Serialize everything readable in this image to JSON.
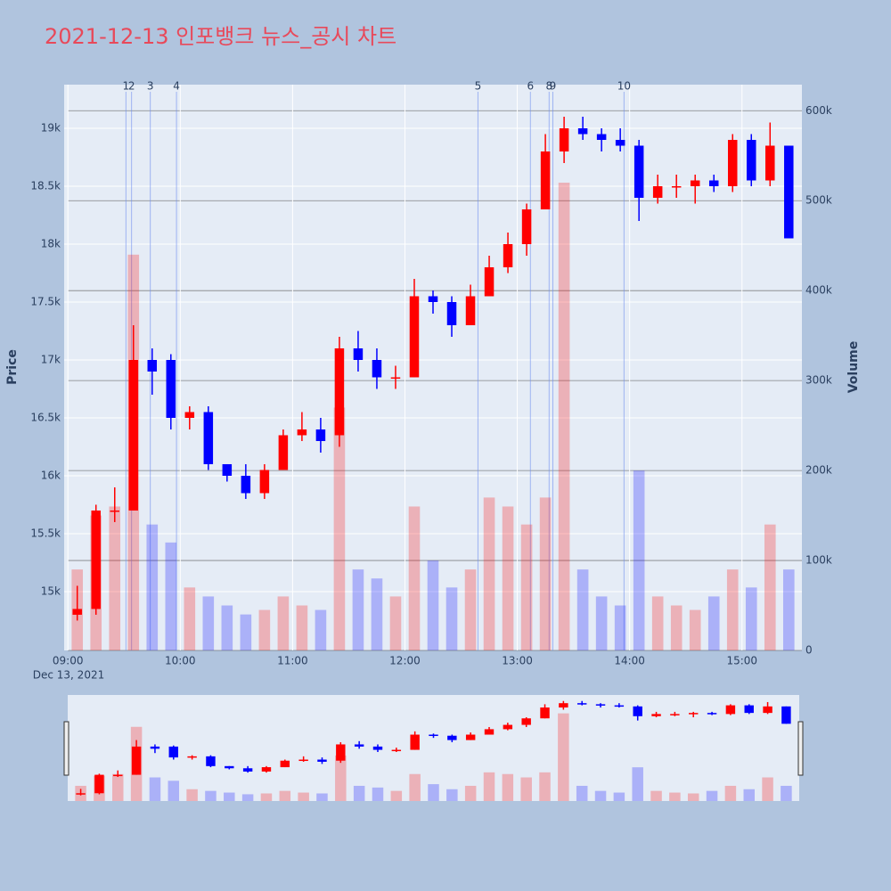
{
  "chart_data": {
    "type": "candlestick",
    "title": "2021-12-13 인포뱅크 뉴스_공시 차트",
    "y_title": "Price",
    "y2_title": "Volume",
    "x": [
      "09:00",
      "09:10",
      "09:20",
      "09:30",
      "09:40",
      "09:50",
      "10:00",
      "10:10",
      "10:20",
      "10:30",
      "10:40",
      "10:50",
      "11:00",
      "11:10",
      "11:20",
      "11:30",
      "11:40",
      "11:50",
      "12:00",
      "12:10",
      "12:20",
      "12:30",
      "12:40",
      "12:50",
      "13:00",
      "13:10",
      "13:20",
      "13:30",
      "13:40",
      "13:50",
      "14:00",
      "14:10",
      "14:20",
      "14:30",
      "14:40",
      "14:50",
      "15:00",
      "15:10",
      "15:20"
    ],
    "open": [
      14800,
      14850,
      15700,
      15700,
      17000,
      17000,
      16500,
      16550,
      16100,
      16000,
      15850,
      16050,
      16350,
      16400,
      16350,
      17100,
      17000,
      16850,
      16850,
      17550,
      17500,
      17300,
      17550,
      17800,
      18000,
      18300,
      18800,
      19000,
      18950,
      18900,
      18850,
      18400,
      18500,
      18500,
      18550,
      18500,
      18900,
      18550,
      18850
    ],
    "high": [
      15050,
      15750,
      15900,
      17300,
      17100,
      17050,
      16600,
      16600,
      16100,
      16100,
      16100,
      16400,
      16550,
      16500,
      17200,
      17250,
      17100,
      16950,
      17700,
      17600,
      17550,
      17650,
      17900,
      18100,
      18350,
      18950,
      19100,
      19100,
      19000,
      19000,
      18900,
      18600,
      18600,
      18600,
      18600,
      18950,
      18950,
      19050,
      18850
    ],
    "low": [
      14750,
      14800,
      15600,
      15700,
      16700,
      16400,
      16400,
      16050,
      15950,
      15800,
      15800,
      16050,
      16300,
      16200,
      16250,
      16900,
      16750,
      16750,
      16850,
      17400,
      17200,
      17300,
      17550,
      17750,
      17900,
      18300,
      18700,
      18900,
      18800,
      18800,
      18200,
      18350,
      18400,
      18350,
      18450,
      18450,
      18500,
      18500,
      18050
    ],
    "close": [
      14850,
      15700,
      15700,
      17000,
      16900,
      16500,
      16550,
      16100,
      16000,
      15850,
      16050,
      16350,
      16400,
      16300,
      17100,
      17000,
      16850,
      16850,
      17550,
      17500,
      17300,
      17550,
      17800,
      18000,
      18300,
      18800,
      19000,
      18950,
      18900,
      18850,
      18400,
      18500,
      18500,
      18550,
      18500,
      18900,
      18550,
      18850,
      18050
    ],
    "volume": [
      90000,
      150000,
      160000,
      440000,
      140000,
      120000,
      70000,
      60000,
      50000,
      40000,
      45000,
      60000,
      50000,
      45000,
      270000,
      90000,
      80000,
      60000,
      160000,
      100000,
      70000,
      90000,
      170000,
      160000,
      140000,
      170000,
      520000,
      90000,
      60000,
      50000,
      200000,
      60000,
      50000,
      45000,
      60000,
      90000,
      70000,
      140000,
      90000
    ],
    "increasing_color": "#ff0000",
    "decreasing_color": "#0000ff",
    "xlim": [
      "08:58",
      "15:32"
    ],
    "xticks": [
      "09:00",
      "10:00",
      "11:00",
      "12:00",
      "13:00",
      "14:00",
      "15:00"
    ],
    "x_date_label": "Dec 13, 2021",
    "ylim": [
      14492,
      19377
    ],
    "yticks": [
      {
        "value": 15000,
        "label": "15k"
      },
      {
        "value": 15500,
        "label": "15.5k"
      },
      {
        "value": 16000,
        "label": "16k"
      },
      {
        "value": 16500,
        "label": "16.5k"
      },
      {
        "value": 17000,
        "label": "17k"
      },
      {
        "value": 17500,
        "label": "17.5k"
      },
      {
        "value": 18000,
        "label": "18k"
      },
      {
        "value": 18500,
        "label": "18.5k"
      },
      {
        "value": 19000,
        "label": "19k"
      }
    ],
    "y2lim": [
      0,
      629000
    ],
    "y2ticks": [
      0,
      {
        "value": 100000,
        "label": "100k"
      },
      {
        "value": 200000,
        "label": "200k"
      },
      {
        "value": 300000,
        "label": "300k"
      },
      {
        "value": 400000,
        "label": "400k"
      },
      {
        "value": 500000,
        "label": "500k"
      },
      {
        "value": 600000,
        "label": "600k"
      }
    ],
    "news": [
      {
        "label": "1",
        "x": "09:31"
      },
      {
        "label": "2",
        "x": "09:34"
      },
      {
        "label": "3",
        "x": "09:44"
      },
      {
        "label": "4",
        "x": "09:58"
      },
      {
        "label": "5",
        "x": "12:39"
      },
      {
        "label": "6",
        "x": "13:07"
      },
      {
        "label": "8",
        "x": "13:17"
      },
      {
        "label": "9",
        "x": "13:19"
      },
      {
        "label": "10",
        "x": "13:57"
      }
    ],
    "grid": true
  }
}
